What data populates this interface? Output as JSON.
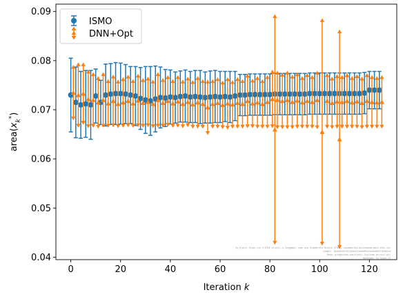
{
  "chart_data": {
    "type": "errorbar",
    "xlabel": "Iteration k",
    "ylabel": "area(x_k^*)",
    "xlim": [
      -6,
      131
    ],
    "ylim": [
      0.0395,
      0.0915
    ],
    "xticks": [
      0,
      20,
      40,
      60,
      80,
      100,
      120
    ],
    "yticks": [
      0.04,
      0.05,
      0.06,
      0.07,
      0.08,
      0.09
    ],
    "ytick_labels": [
      "0.04",
      "0.05",
      "0.06",
      "0.07",
      "0.08",
      "0.09"
    ],
    "grid": false,
    "legend_position": "upper-left",
    "colors": {
      "ISMO": "#1f77b4",
      "DNN+Opt": "#ff7f0e"
    },
    "series": [
      {
        "name": "ISMO",
        "marker": "circle",
        "points": [
          {
            "x": 0,
            "y": 0.073,
            "err": 0.0075
          },
          {
            "x": 2,
            "y": 0.0715,
            "err": 0.0072
          },
          {
            "x": 4,
            "y": 0.071,
            "err": 0.0068
          },
          {
            "x": 6,
            "y": 0.0712,
            "err": 0.0068
          },
          {
            "x": 8,
            "y": 0.071,
            "err": 0.007
          },
          {
            "x": 10,
            "y": 0.0728,
            "err": 0.0055
          },
          {
            "x": 12,
            "y": 0.0715,
            "err": 0.0045
          },
          {
            "x": 14,
            "y": 0.073,
            "err": 0.0063
          },
          {
            "x": 16,
            "y": 0.0732,
            "err": 0.0062
          },
          {
            "x": 18,
            "y": 0.0733,
            "err": 0.0063
          },
          {
            "x": 20,
            "y": 0.0733,
            "err": 0.0062
          },
          {
            "x": 22,
            "y": 0.0732,
            "err": 0.006
          },
          {
            "x": 24,
            "y": 0.073,
            "err": 0.0058
          },
          {
            "x": 26,
            "y": 0.0728,
            "err": 0.006
          },
          {
            "x": 28,
            "y": 0.0723,
            "err": 0.0063
          },
          {
            "x": 30,
            "y": 0.072,
            "err": 0.0068
          },
          {
            "x": 32,
            "y": 0.0718,
            "err": 0.007
          },
          {
            "x": 34,
            "y": 0.0722,
            "err": 0.0067
          },
          {
            "x": 36,
            "y": 0.0725,
            "err": 0.0062
          },
          {
            "x": 38,
            "y": 0.0724,
            "err": 0.0058
          },
          {
            "x": 40,
            "y": 0.0726,
            "err": 0.0055
          },
          {
            "x": 42,
            "y": 0.0725,
            "err": 0.0052
          },
          {
            "x": 44,
            "y": 0.0727,
            "err": 0.0052
          },
          {
            "x": 46,
            "y": 0.0728,
            "err": 0.0053
          },
          {
            "x": 48,
            "y": 0.0726,
            "err": 0.0052
          },
          {
            "x": 50,
            "y": 0.0727,
            "err": 0.0053
          },
          {
            "x": 52,
            "y": 0.0726,
            "err": 0.0054
          },
          {
            "x": 54,
            "y": 0.0725,
            "err": 0.0052
          },
          {
            "x": 56,
            "y": 0.0726,
            "err": 0.0053
          },
          {
            "x": 58,
            "y": 0.0727,
            "err": 0.0053
          },
          {
            "x": 60,
            "y": 0.0726,
            "err": 0.0052
          },
          {
            "x": 62,
            "y": 0.0727,
            "err": 0.0051
          },
          {
            "x": 64,
            "y": 0.0726,
            "err": 0.0052
          },
          {
            "x": 66,
            "y": 0.0728,
            "err": 0.005
          },
          {
            "x": 68,
            "y": 0.073,
            "err": 0.0042
          },
          {
            "x": 70,
            "y": 0.073,
            "err": 0.0042
          },
          {
            "x": 72,
            "y": 0.0731,
            "err": 0.0042
          },
          {
            "x": 74,
            "y": 0.0731,
            "err": 0.0042
          },
          {
            "x": 76,
            "y": 0.0731,
            "err": 0.0042
          },
          {
            "x": 78,
            "y": 0.0731,
            "err": 0.0042
          },
          {
            "x": 80,
            "y": 0.0731,
            "err": 0.0042
          },
          {
            "x": 82,
            "y": 0.0732,
            "err": 0.0042
          },
          {
            "x": 84,
            "y": 0.0732,
            "err": 0.0042
          },
          {
            "x": 86,
            "y": 0.0732,
            "err": 0.0042
          },
          {
            "x": 88,
            "y": 0.0732,
            "err": 0.0042
          },
          {
            "x": 90,
            "y": 0.0732,
            "err": 0.0042
          },
          {
            "x": 92,
            "y": 0.0732,
            "err": 0.0042
          },
          {
            "x": 94,
            "y": 0.0732,
            "err": 0.0042
          },
          {
            "x": 96,
            "y": 0.0733,
            "err": 0.0042
          },
          {
            "x": 98,
            "y": 0.0733,
            "err": 0.0042
          },
          {
            "x": 100,
            "y": 0.0733,
            "err": 0.0042
          },
          {
            "x": 102,
            "y": 0.0733,
            "err": 0.0042
          },
          {
            "x": 104,
            "y": 0.0733,
            "err": 0.0042
          },
          {
            "x": 106,
            "y": 0.0733,
            "err": 0.0042
          },
          {
            "x": 108,
            "y": 0.0733,
            "err": 0.0042
          },
          {
            "x": 110,
            "y": 0.0733,
            "err": 0.0042
          },
          {
            "x": 112,
            "y": 0.0733,
            "err": 0.0042
          },
          {
            "x": 114,
            "y": 0.0733,
            "err": 0.0042
          },
          {
            "x": 116,
            "y": 0.0733,
            "err": 0.0042
          },
          {
            "x": 118,
            "y": 0.0734,
            "err": 0.0042
          },
          {
            "x": 120,
            "y": 0.074,
            "err": 0.0038
          },
          {
            "x": 122,
            "y": 0.074,
            "err": 0.0038
          },
          {
            "x": 124,
            "y": 0.074,
            "err": 0.0038
          }
        ]
      },
      {
        "name": "DNN+Opt",
        "marker": "triangle",
        "points": [
          {
            "x": 1,
            "y": 0.0735,
            "err": 0.0055
          },
          {
            "x": 3,
            "y": 0.073,
            "err": 0.0065
          },
          {
            "x": 5,
            "y": 0.0733,
            "err": 0.0062
          },
          {
            "x": 7,
            "y": 0.0722,
            "err": 0.0058
          },
          {
            "x": 9,
            "y": 0.072,
            "err": 0.0055
          },
          {
            "x": 11,
            "y": 0.0715,
            "err": 0.0052
          },
          {
            "x": 13,
            "y": 0.072,
            "err": 0.0055
          },
          {
            "x": 15,
            "y": 0.0713,
            "err": 0.0048
          },
          {
            "x": 17,
            "y": 0.0718,
            "err": 0.0052
          },
          {
            "x": 19,
            "y": 0.0712,
            "err": 0.0048
          },
          {
            "x": 21,
            "y": 0.0715,
            "err": 0.005
          },
          {
            "x": 23,
            "y": 0.0718,
            "err": 0.0052
          },
          {
            "x": 25,
            "y": 0.0713,
            "err": 0.0048
          },
          {
            "x": 27,
            "y": 0.0719,
            "err": 0.0053
          },
          {
            "x": 29,
            "y": 0.0714,
            "err": 0.0049
          },
          {
            "x": 31,
            "y": 0.0716,
            "err": 0.005
          },
          {
            "x": 33,
            "y": 0.0712,
            "err": 0.0048
          },
          {
            "x": 35,
            "y": 0.072,
            "err": 0.0055
          },
          {
            "x": 37,
            "y": 0.0714,
            "err": 0.0049
          },
          {
            "x": 39,
            "y": 0.0718,
            "err": 0.0051
          },
          {
            "x": 41,
            "y": 0.0713,
            "err": 0.0048
          },
          {
            "x": 43,
            "y": 0.0717,
            "err": 0.0052
          },
          {
            "x": 45,
            "y": 0.0712,
            "err": 0.0048
          },
          {
            "x": 47,
            "y": 0.0716,
            "err": 0.005
          },
          {
            "x": 49,
            "y": 0.0711,
            "err": 0.0048
          },
          {
            "x": 51,
            "y": 0.0715,
            "err": 0.0052
          },
          {
            "x": 53,
            "y": 0.0712,
            "err": 0.0049
          },
          {
            "x": 55,
            "y": 0.0705,
            "err": 0.0055
          },
          {
            "x": 57,
            "y": 0.0712,
            "err": 0.0049
          },
          {
            "x": 59,
            "y": 0.0714,
            "err": 0.0051
          },
          {
            "x": 61,
            "y": 0.071,
            "err": 0.0048
          },
          {
            "x": 63,
            "y": 0.0713,
            "err": 0.0052
          },
          {
            "x": 65,
            "y": 0.0711,
            "err": 0.0048
          },
          {
            "x": 67,
            "y": 0.0714,
            "err": 0.0051
          },
          {
            "x": 69,
            "y": 0.0712,
            "err": 0.0049
          },
          {
            "x": 71,
            "y": 0.0718,
            "err": 0.0054
          },
          {
            "x": 73,
            "y": 0.0713,
            "err": 0.0049
          },
          {
            "x": 75,
            "y": 0.0715,
            "err": 0.0052
          },
          {
            "x": 77,
            "y": 0.0712,
            "err": 0.0049
          },
          {
            "x": 79,
            "y": 0.0716,
            "err": 0.0053
          },
          {
            "x": 81,
            "y": 0.0722,
            "err": 0.0058
          },
          {
            "x": 82,
            "y": 0.066,
            "err": 0.0233
          },
          {
            "x": 83,
            "y": 0.072,
            "err": 0.0058
          },
          {
            "x": 85,
            "y": 0.0718,
            "err": 0.0056
          },
          {
            "x": 87,
            "y": 0.072,
            "err": 0.0058
          },
          {
            "x": 89,
            "y": 0.0716,
            "err": 0.0054
          },
          {
            "x": 91,
            "y": 0.0719,
            "err": 0.0056
          },
          {
            "x": 93,
            "y": 0.0715,
            "err": 0.0052
          },
          {
            "x": 95,
            "y": 0.0718,
            "err": 0.0055
          },
          {
            "x": 97,
            "y": 0.0716,
            "err": 0.0053
          },
          {
            "x": 99,
            "y": 0.072,
            "err": 0.0058
          },
          {
            "x": 101,
            "y": 0.0655,
            "err": 0.023
          },
          {
            "x": 103,
            "y": 0.0718,
            "err": 0.0055
          },
          {
            "x": 105,
            "y": 0.0714,
            "err": 0.0052
          },
          {
            "x": 107,
            "y": 0.0717,
            "err": 0.0054
          },
          {
            "x": 108,
            "y": 0.064,
            "err": 0.0222
          },
          {
            "x": 109,
            "y": 0.0716,
            "err": 0.0053
          },
          {
            "x": 111,
            "y": 0.0718,
            "err": 0.0055
          },
          {
            "x": 113,
            "y": 0.0715,
            "err": 0.0052
          },
          {
            "x": 115,
            "y": 0.0717,
            "err": 0.0054
          },
          {
            "x": 117,
            "y": 0.0714,
            "err": 0.0052
          },
          {
            "x": 119,
            "y": 0.0718,
            "err": 0.0055
          },
          {
            "x": 121,
            "y": 0.0716,
            "err": 0.0053
          },
          {
            "x": 123,
            "y": 0.0715,
            "err": 0.0052
          },
          {
            "x": 125,
            "y": 0.0716,
            "err": 0.0053
          }
        ]
      }
    ],
    "annotations": [
      "By Kjetil Olsen Lye @ ETHZ <kjetil.o.lye@gmail.com> and Siddhartha Mishra (ETHZ) <siddhartha.mishra@sam.math.ethz.ch>",
      "Commit: 3ad4e033f3e2f1eed11ae8d9b3c0e9bd0d123b3b4cd",
      "Repo: git@github.com:kjetil-lye/ismo_airfoil.git",
      "Hostname: eu-login-11"
    ]
  }
}
